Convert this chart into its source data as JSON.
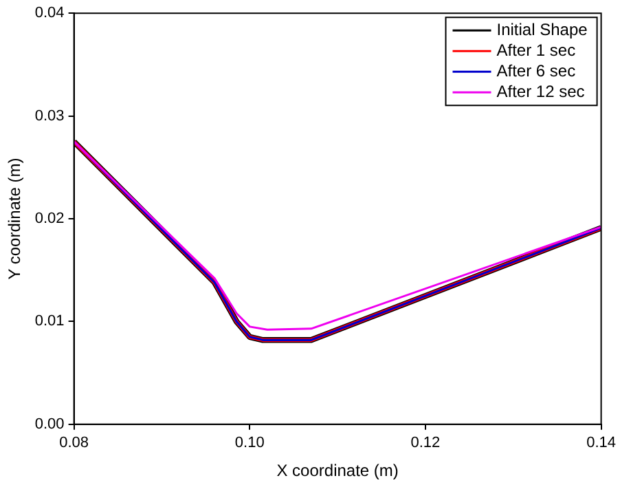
{
  "chart_data": {
    "type": "line",
    "xlabel": "X coordinate (m)",
    "ylabel": "Y coordinate (m)",
    "xlim": [
      0.08,
      0.14
    ],
    "xticks": [
      {
        "value": 0.08,
        "label": "0.08"
      },
      {
        "value": 0.1,
        "label": "0.10"
      },
      {
        "value": 0.12,
        "label": "0.12"
      },
      {
        "value": 0.14,
        "label": "0.14"
      }
    ],
    "ylim": [
      0,
      0.04
    ],
    "yticks": [
      {
        "value": 0,
        "label": "0.00"
      },
      {
        "value": 0.01,
        "label": "0.01"
      },
      {
        "value": 0.02,
        "label": "0.02"
      },
      {
        "value": 0.03,
        "label": "0.03"
      },
      {
        "value": 0.04,
        "label": "0.04"
      }
    ],
    "grid": false,
    "legend": "top right",
    "marker": "none",
    "line_style": "solid",
    "series": [
      {
        "name": "Initial Shape",
        "color": "#000000",
        "x": [
          0.08,
          0.096,
          0.0985,
          0.1,
          0.1015,
          0.107,
          0.14
        ],
        "values": [
          0.0275,
          0.0138,
          0.01,
          0.0085,
          0.0082,
          0.0082,
          0.0191
        ]
      },
      {
        "name": "After 1 sec",
        "color": "#ff0000",
        "x": [
          0.08,
          0.096,
          0.0985,
          0.1,
          0.1015,
          0.107,
          0.14
        ],
        "values": [
          0.0275,
          0.0138,
          0.01,
          0.0085,
          0.0082,
          0.0082,
          0.0191
        ]
      },
      {
        "name": "After 6 sec",
        "color": "#0000cc",
        "x": [
          0.08,
          0.096,
          0.0985,
          0.1,
          0.1015,
          0.107,
          0.14
        ],
        "values": [
          0.0275,
          0.0138,
          0.01,
          0.0085,
          0.0082,
          0.0082,
          0.0191
        ]
      },
      {
        "name": "After 12 sec",
        "color": "#ee00ee",
        "x": [
          0.08,
          0.096,
          0.0985,
          0.1,
          0.102,
          0.107,
          0.14
        ],
        "values": [
          0.0275,
          0.0142,
          0.0108,
          0.0095,
          0.0092,
          0.0093,
          0.0192
        ]
      }
    ]
  }
}
